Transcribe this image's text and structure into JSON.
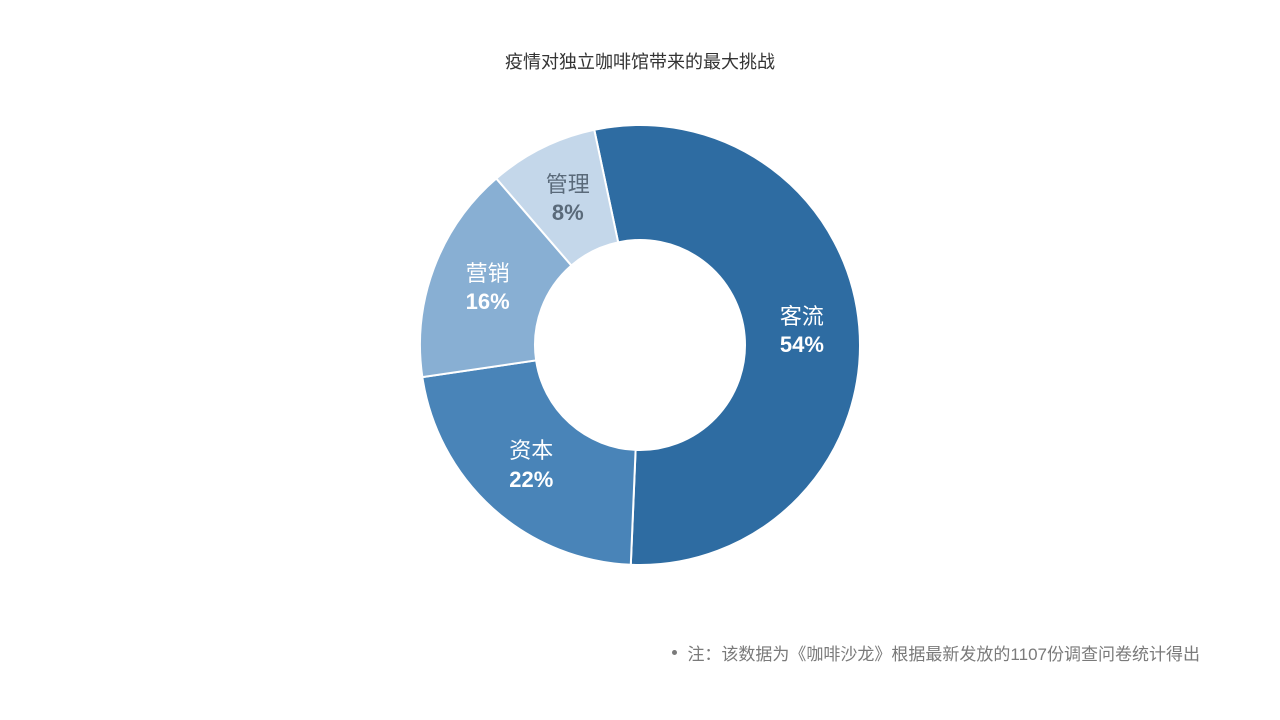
{
  "chart": {
    "type": "donut",
    "title": "疫情对独立咖啡馆带来的最大挑战",
    "title_fontsize": 18,
    "title_color": "#333333",
    "background_color": "#ffffff",
    "start_angle_deg": -12,
    "direction": "clockwise",
    "outer_radius": 220,
    "inner_radius": 105,
    "stroke_color": "#ffffff",
    "stroke_width": 2,
    "slices": [
      {
        "label": "客流",
        "value": 54,
        "pct": "54%",
        "color": "#2e6ca2",
        "label_color": "#ffffff",
        "label_fontsize": 22
      },
      {
        "label": "资本",
        "value": 22,
        "pct": "22%",
        "color": "#4984b8",
        "label_color": "#ffffff",
        "label_fontsize": 22
      },
      {
        "label": "营销",
        "value": 16,
        "pct": "16%",
        "color": "#88afd3",
        "label_color": "#ffffff",
        "label_fontsize": 22
      },
      {
        "label": "管理",
        "value": 8,
        "pct": "8%",
        "color": "#c4d7ea",
        "label_color": "#5a6a7a",
        "label_fontsize": 22
      }
    ]
  },
  "footnote": {
    "text": "注：该数据为《咖啡沙龙》根据最新发放的1107份调查问卷统计得出",
    "color": "#7a7a7a",
    "fontsize": 17
  }
}
